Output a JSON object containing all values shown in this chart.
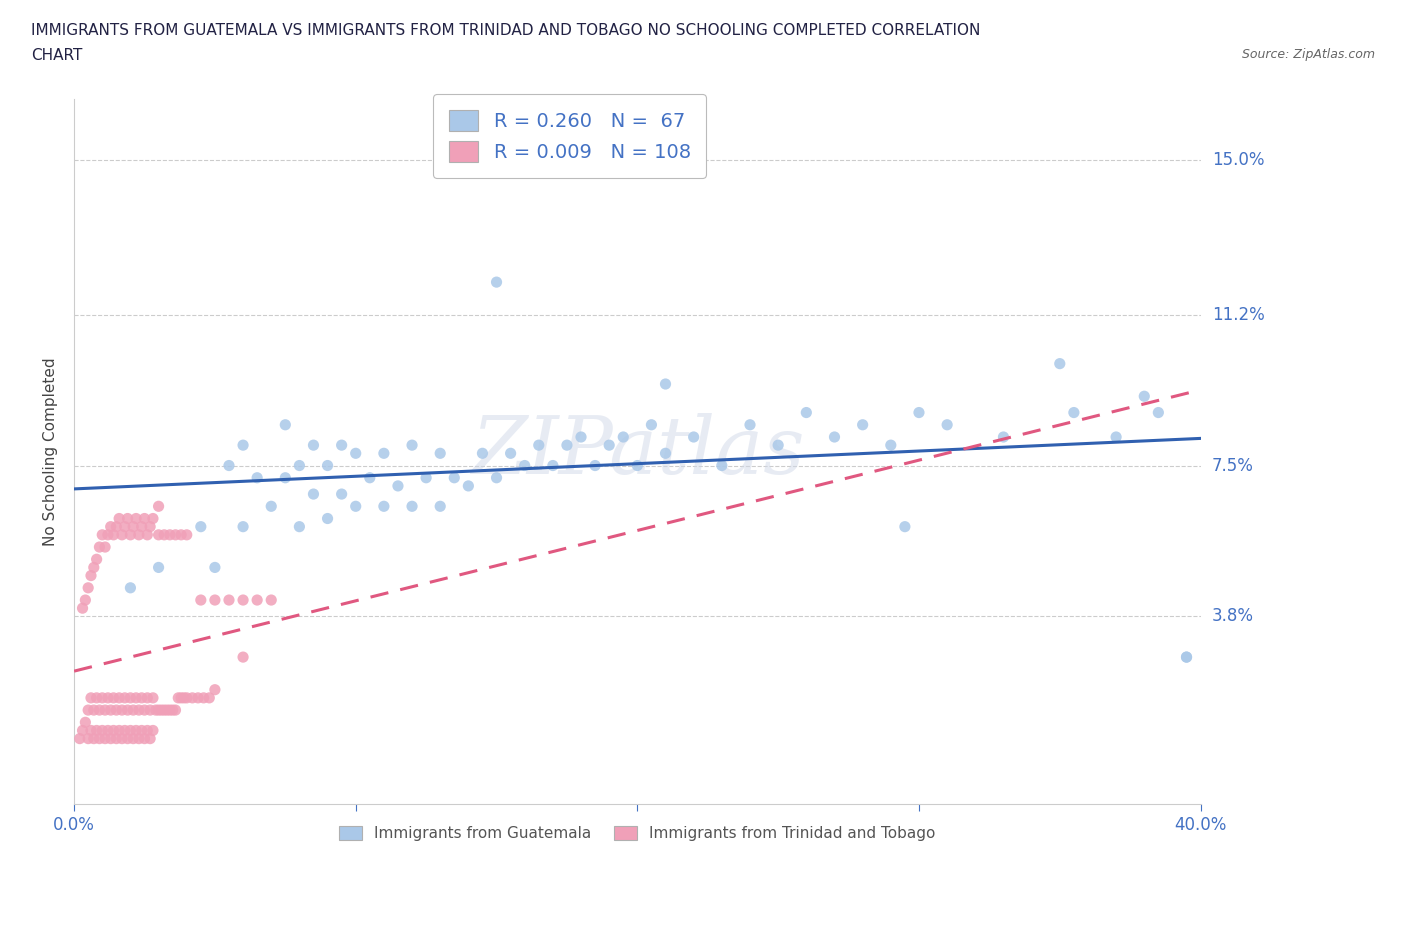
{
  "title_line1": "IMMIGRANTS FROM GUATEMALA VS IMMIGRANTS FROM TRINIDAD AND TOBAGO NO SCHOOLING COMPLETED CORRELATION",
  "title_line2": "CHART",
  "source": "Source: ZipAtlas.com",
  "ylabel": "No Schooling Completed",
  "yticks": [
    0.0,
    0.038,
    0.075,
    0.112,
    0.15
  ],
  "ytick_labels": [
    "",
    "3.8%",
    "7.5%",
    "11.2%",
    "15.0%"
  ],
  "xtick_labels": [
    "0.0%",
    "",
    "",
    "",
    "40.0%"
  ],
  "xlim": [
    0.0,
    0.4
  ],
  "ylim": [
    -0.008,
    0.165
  ],
  "legend_text_1": "R = 0.260   N =  67",
  "legend_text_2": "R = 0.009   N = 108",
  "legend_label_1": "Immigrants from Guatemala",
  "legend_label_2": "Immigrants from Trinidad and Tobago",
  "color_guatemala": "#aac8e8",
  "color_tt": "#f0a0b8",
  "color_line_guatemala": "#3060b0",
  "color_line_tt": "#e05880",
  "color_axis_labels": "#4472c4",
  "color_title": "#222244",
  "watermark": "ZIPatlas",
  "guatemala_x": [
    0.02,
    0.03,
    0.045,
    0.05,
    0.055,
    0.06,
    0.06,
    0.065,
    0.07,
    0.075,
    0.075,
    0.08,
    0.08,
    0.085,
    0.085,
    0.09,
    0.09,
    0.095,
    0.095,
    0.1,
    0.1,
    0.105,
    0.11,
    0.11,
    0.115,
    0.12,
    0.12,
    0.125,
    0.13,
    0.13,
    0.135,
    0.14,
    0.145,
    0.15,
    0.155,
    0.16,
    0.165,
    0.17,
    0.175,
    0.18,
    0.185,
    0.19,
    0.195,
    0.2,
    0.205,
    0.21,
    0.22,
    0.23,
    0.24,
    0.25,
    0.26,
    0.27,
    0.28,
    0.29,
    0.3,
    0.31,
    0.33,
    0.355,
    0.37,
    0.385,
    0.395,
    0.15,
    0.21,
    0.295,
    0.35,
    0.38,
    0.395
  ],
  "guatemala_y": [
    0.045,
    0.05,
    0.06,
    0.05,
    0.075,
    0.06,
    0.08,
    0.072,
    0.065,
    0.072,
    0.085,
    0.06,
    0.075,
    0.068,
    0.08,
    0.062,
    0.075,
    0.068,
    0.08,
    0.065,
    0.078,
    0.072,
    0.065,
    0.078,
    0.07,
    0.065,
    0.08,
    0.072,
    0.065,
    0.078,
    0.072,
    0.07,
    0.078,
    0.072,
    0.078,
    0.075,
    0.08,
    0.075,
    0.08,
    0.082,
    0.075,
    0.08,
    0.082,
    0.075,
    0.085,
    0.078,
    0.082,
    0.075,
    0.085,
    0.08,
    0.088,
    0.082,
    0.085,
    0.08,
    0.088,
    0.085,
    0.082,
    0.088,
    0.082,
    0.088,
    0.028,
    0.12,
    0.095,
    0.06,
    0.1,
    0.092,
    0.028
  ],
  "tt_x": [
    0.002,
    0.003,
    0.004,
    0.005,
    0.005,
    0.006,
    0.006,
    0.007,
    0.007,
    0.008,
    0.008,
    0.009,
    0.009,
    0.01,
    0.01,
    0.011,
    0.011,
    0.012,
    0.012,
    0.013,
    0.013,
    0.014,
    0.014,
    0.015,
    0.015,
    0.016,
    0.016,
    0.017,
    0.017,
    0.018,
    0.018,
    0.019,
    0.019,
    0.02,
    0.02,
    0.021,
    0.021,
    0.022,
    0.022,
    0.023,
    0.023,
    0.024,
    0.024,
    0.025,
    0.025,
    0.026,
    0.026,
    0.027,
    0.027,
    0.028,
    0.028,
    0.029,
    0.03,
    0.031,
    0.032,
    0.033,
    0.034,
    0.035,
    0.036,
    0.037,
    0.038,
    0.039,
    0.04,
    0.042,
    0.044,
    0.046,
    0.048,
    0.05,
    0.003,
    0.004,
    0.005,
    0.006,
    0.007,
    0.008,
    0.009,
    0.01,
    0.011,
    0.012,
    0.013,
    0.014,
    0.015,
    0.016,
    0.017,
    0.018,
    0.019,
    0.02,
    0.021,
    0.022,
    0.023,
    0.024,
    0.025,
    0.026,
    0.027,
    0.028,
    0.03,
    0.032,
    0.034,
    0.036,
    0.038,
    0.04,
    0.045,
    0.05,
    0.055,
    0.06,
    0.065,
    0.07,
    0.03,
    0.06
  ],
  "tt_y": [
    0.008,
    0.01,
    0.012,
    0.008,
    0.015,
    0.01,
    0.018,
    0.008,
    0.015,
    0.01,
    0.018,
    0.008,
    0.015,
    0.01,
    0.018,
    0.008,
    0.015,
    0.01,
    0.018,
    0.008,
    0.015,
    0.01,
    0.018,
    0.008,
    0.015,
    0.01,
    0.018,
    0.008,
    0.015,
    0.01,
    0.018,
    0.008,
    0.015,
    0.01,
    0.018,
    0.008,
    0.015,
    0.01,
    0.018,
    0.008,
    0.015,
    0.01,
    0.018,
    0.008,
    0.015,
    0.01,
    0.018,
    0.008,
    0.015,
    0.01,
    0.018,
    0.015,
    0.015,
    0.015,
    0.015,
    0.015,
    0.015,
    0.015,
    0.015,
    0.018,
    0.018,
    0.018,
    0.018,
    0.018,
    0.018,
    0.018,
    0.018,
    0.02,
    0.04,
    0.042,
    0.045,
    0.048,
    0.05,
    0.052,
    0.055,
    0.058,
    0.055,
    0.058,
    0.06,
    0.058,
    0.06,
    0.062,
    0.058,
    0.06,
    0.062,
    0.058,
    0.06,
    0.062,
    0.058,
    0.06,
    0.062,
    0.058,
    0.06,
    0.062,
    0.058,
    0.058,
    0.058,
    0.058,
    0.058,
    0.058,
    0.042,
    0.042,
    0.042,
    0.042,
    0.042,
    0.042,
    0.065,
    0.028
  ]
}
